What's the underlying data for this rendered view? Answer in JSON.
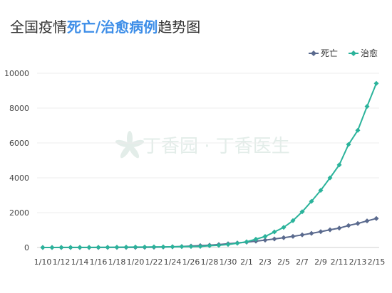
{
  "title": {
    "prefix": "全国疫情",
    "highlight": "死亡/治愈病例",
    "suffix": "趋势图"
  },
  "watermark": "丁香园 · 丁香医生",
  "colors": {
    "death": "#5a6a8e",
    "cured": "#2bb39b",
    "title_highlight": "#3d8ee8"
  },
  "chart_data": {
    "type": "line",
    "x": [
      "1/10",
      "1/11",
      "1/12",
      "1/13",
      "1/14",
      "1/15",
      "1/16",
      "1/17",
      "1/18",
      "1/19",
      "1/20",
      "1/21",
      "1/22",
      "1/23",
      "1/24",
      "1/25",
      "1/26",
      "1/27",
      "1/28",
      "1/29",
      "1/30",
      "1/31",
      "2/1",
      "2/2",
      "2/3",
      "2/4",
      "2/5",
      "2/6",
      "2/7",
      "2/8",
      "2/9",
      "2/10",
      "2/11",
      "2/12",
      "2/13",
      "2/14",
      "2/15"
    ],
    "x_tick_labels": [
      "1/10",
      "1/12",
      "1/14",
      "1/16",
      "1/18",
      "1/20",
      "1/22",
      "1/24",
      "1/26",
      "1/28",
      "1/30",
      "2/1",
      "2/3",
      "2/5",
      "2/7",
      "2/9",
      "2/11",
      "2/13",
      "2/15"
    ],
    "series": [
      {
        "name": "死亡",
        "marker": "diamond",
        "values": [
          1,
          1,
          2,
          2,
          2,
          2,
          2,
          3,
          3,
          4,
          6,
          9,
          17,
          25,
          41,
          56,
          80,
          106,
          132,
          170,
          213,
          259,
          304,
          361,
          425,
          490,
          563,
          636,
          722,
          811,
          908,
          1016,
          1113,
          1259,
          1380,
          1523,
          1665
        ]
      },
      {
        "name": "治愈",
        "marker": "diamond",
        "values": [
          2,
          2,
          3,
          4,
          5,
          6,
          8,
          10,
          15,
          20,
          25,
          28,
          34,
          38,
          39,
          49,
          58,
          61,
          103,
          125,
          171,
          243,
          328,
          475,
          632,
          892,
          1153,
          1540,
          2050,
          2649,
          3281,
          3996,
          4740,
          5911,
          6723,
          8096,
          9419
        ]
      }
    ],
    "y_ticks": [
      0,
      2000,
      4000,
      6000,
      8000,
      10000
    ],
    "ylim": [
      0,
      10000
    ],
    "grid": "horizontal",
    "legend": "top-right"
  }
}
